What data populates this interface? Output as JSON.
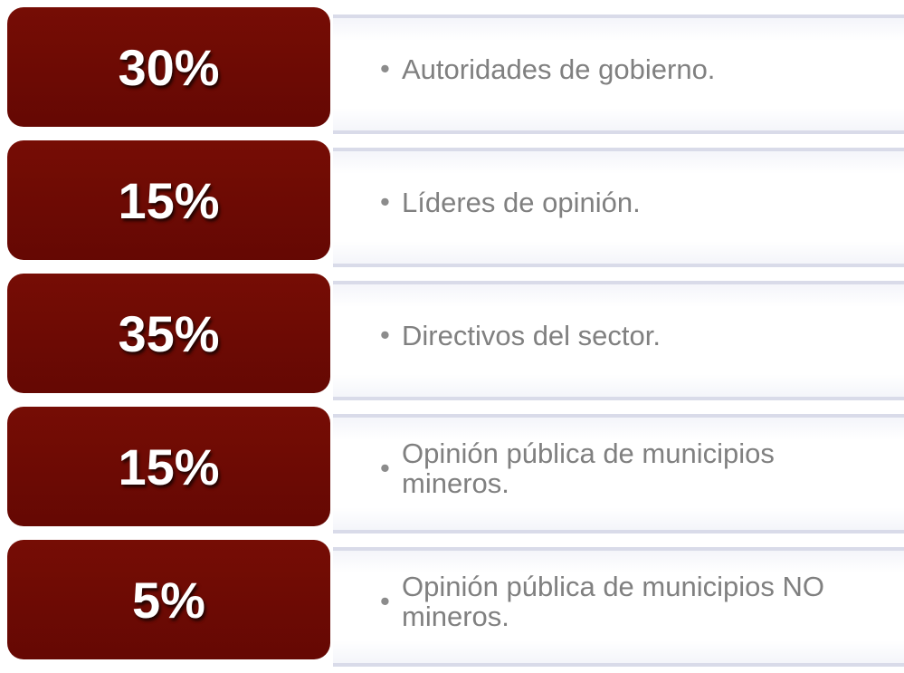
{
  "items": [
    {
      "percent": "30%",
      "text": "Autoridades de gobierno."
    },
    {
      "percent": "15%",
      "text": "Líderes de opinión."
    },
    {
      "percent": "35%",
      "text": "Directivos del sector."
    },
    {
      "percent": "15%",
      "text": "Opinión pública de municipios mineros."
    },
    {
      "percent": "5%",
      "text": "Opinión pública de municipios NO mineros."
    }
  ]
}
